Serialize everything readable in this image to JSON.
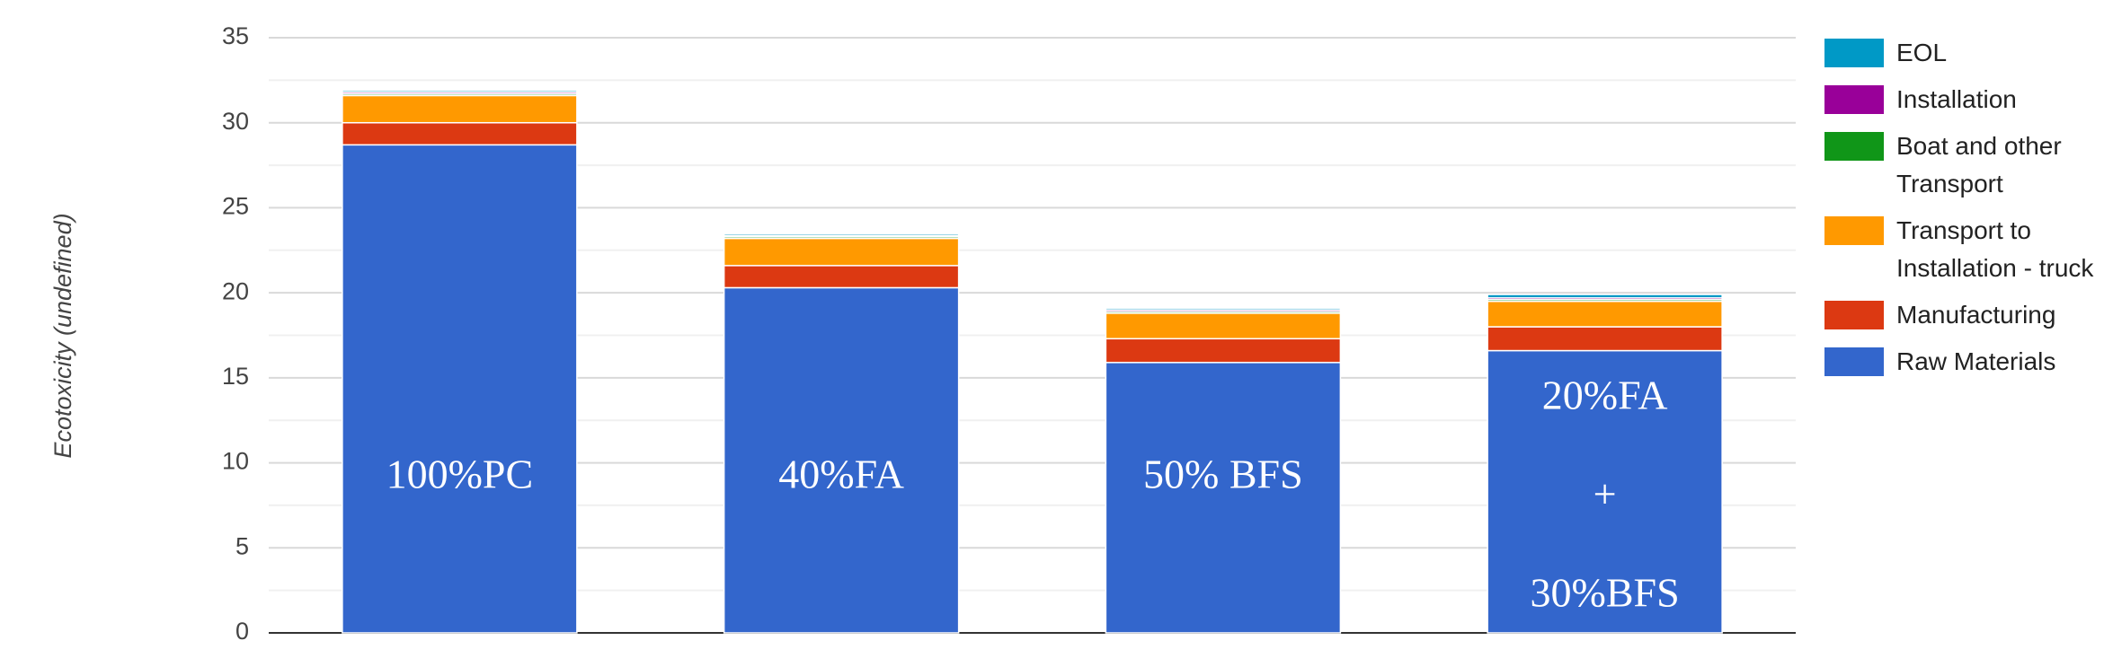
{
  "chart_data": {
    "type": "stacked_bar",
    "y_label": "Ecotoxicity (undefined)",
    "categories": [
      [
        "100%PC"
      ],
      [
        "40%FA"
      ],
      [
        "50% BFS"
      ],
      [
        "20%FA",
        "+",
        "30%BFS"
      ]
    ],
    "series": [
      {
        "name": "Raw Materials",
        "color": "#3366cc",
        "values": [
          28.7,
          20.3,
          15.9,
          16.6
        ]
      },
      {
        "name": "Manufacturing",
        "color": "#dc3912",
        "values": [
          1.3,
          1.3,
          1.4,
          1.4
        ]
      },
      {
        "name": "Transport to Installation - truck",
        "color": "#ff9900",
        "values": [
          1.6,
          1.6,
          1.5,
          1.5
        ]
      },
      {
        "name": "Boat and other Transport",
        "color": "#109618",
        "values": [
          0.1,
          0.1,
          0.1,
          0.1
        ]
      },
      {
        "name": "Installation",
        "color": "#990099",
        "values": [
          0.1,
          0.05,
          0.1,
          0.1
        ]
      },
      {
        "name": "EOL",
        "color": "#0099c6",
        "values": [
          0.1,
          0.1,
          0.1,
          0.2
        ]
      }
    ],
    "ylim": [
      0,
      35
    ],
    "yticks": [
      0,
      5,
      10,
      15,
      20,
      25,
      30,
      35
    ],
    "minor_yticks": [
      2.5,
      7.5,
      12.5,
      17.5,
      22.5,
      27.5,
      32.5
    ],
    "grid": true,
    "legend": "right"
  }
}
